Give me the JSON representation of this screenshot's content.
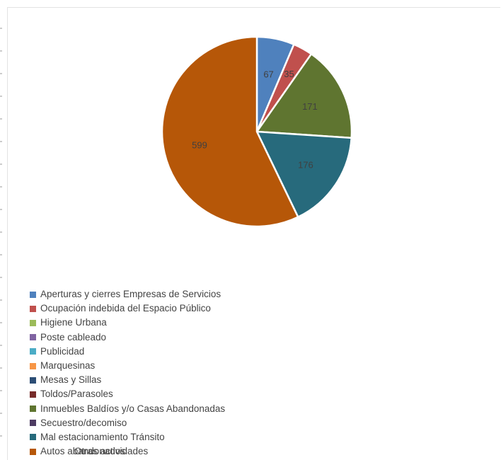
{
  "chart_data": {
    "type": "pie",
    "title": "",
    "slices": [
      {
        "label": "Aperturas y cierres Empresas de Servicios",
        "value": 67,
        "color": "#4f81bd",
        "data_label": "67"
      },
      {
        "label": "Ocupación indebida del Espacio Público",
        "value": 35,
        "color": "#c0504d",
        "data_label": "35"
      },
      {
        "label": "Higiene Urbana",
        "value": 0,
        "color": "#9bbb59",
        "data_label": ""
      },
      {
        "label": "Poste cableado",
        "value": 0,
        "color": "#8064a2",
        "data_label": ""
      },
      {
        "label": "Publicidad",
        "value": 0,
        "color": "#4bacc6",
        "data_label": ""
      },
      {
        "label": "Marquesinas",
        "value": 0,
        "color": "#f79646",
        "data_label": ""
      },
      {
        "label": "Mesas y Sillas",
        "value": 0,
        "color": "#2c4d75",
        "data_label": ""
      },
      {
        "label": "Toldos/Parasoles",
        "value": 0,
        "color": "#772c2a",
        "data_label": ""
      },
      {
        "label": "Inmuebles Baldíos y/o Casas Abandonadas",
        "value": 171,
        "color": "#5f7530",
        "data_label": "171"
      },
      {
        "label": "Secuestro/decomiso",
        "value": 0,
        "color": "#4d3b62",
        "data_label": ""
      },
      {
        "label": "Mal estacionamiento Tránsito",
        "value": 176,
        "color": "#276a7c",
        "data_label": "176"
      },
      {
        "label": "Autos abandonados",
        "value": 599,
        "color": "#b65708",
        "data_label": "599"
      }
    ],
    "legend_position": "bottom",
    "legend_overlap_text": "Otras actividades"
  }
}
